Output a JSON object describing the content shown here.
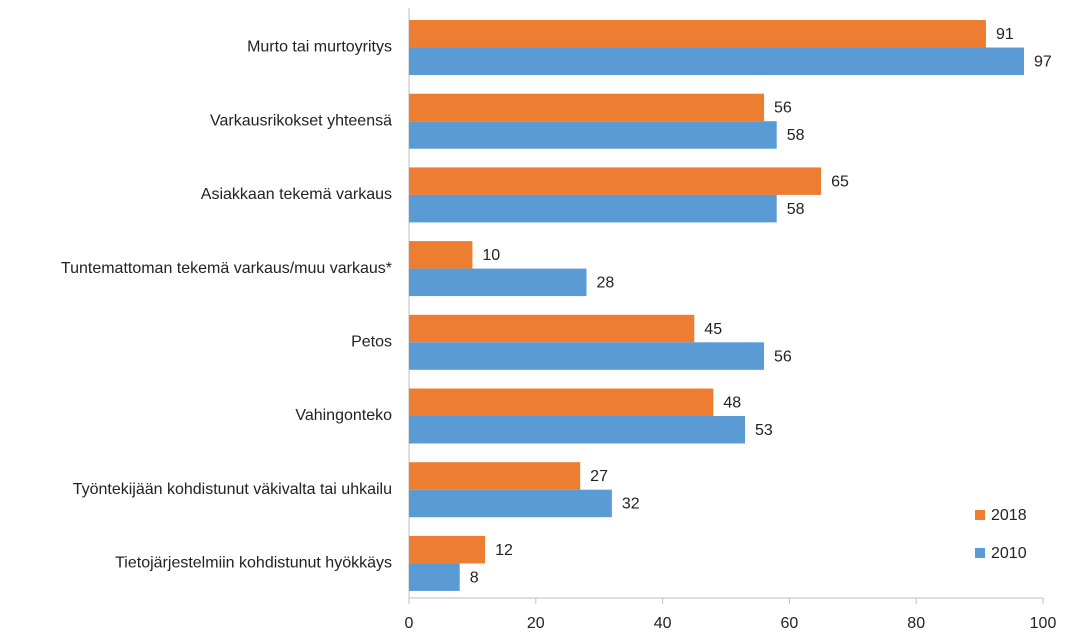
{
  "chart_data": {
    "type": "bar",
    "orientation": "horizontal",
    "categories": [
      "Murto tai murtoyritys",
      "Varkausrikokset yhteensä",
      "Asiakkaan tekemä varkaus",
      "Tuntemattoman tekemä varkaus/muu varkaus*",
      "Petos",
      "Vahingonteko",
      "Työntekijään kohdistunut väkivalta tai uhkailu",
      "Tietojärjestelmiin kohdistunut hyökkäys"
    ],
    "series": [
      {
        "name": "2018",
        "color": "#ed7d31",
        "values": [
          91,
          56,
          65,
          10,
          45,
          48,
          27,
          12
        ]
      },
      {
        "name": "2010",
        "color": "#5b9bd5",
        "values": [
          97,
          58,
          58,
          28,
          56,
          53,
          32,
          8
        ]
      }
    ],
    "xlim": [
      0,
      100
    ],
    "xticks": [
      0,
      20,
      40,
      60,
      80,
      100
    ],
    "legend": "lower right"
  }
}
